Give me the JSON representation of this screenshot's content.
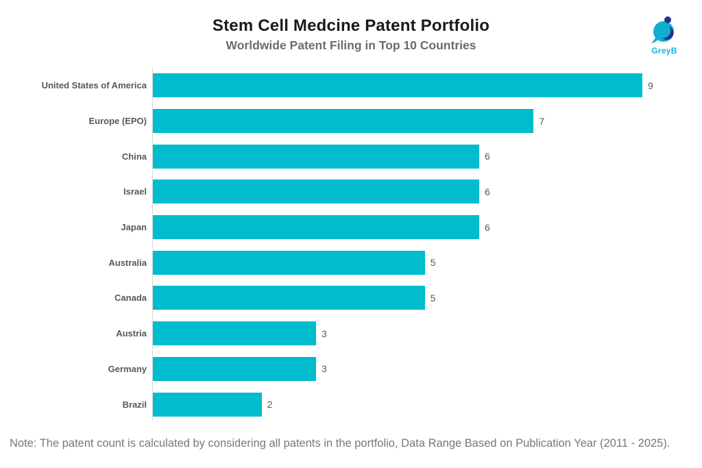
{
  "header": {
    "title": "Stem Cell Medcine Patent Portfolio",
    "subtitle": "Worldwide Patent Filing in Top 10 Countries",
    "logo_text": "GreyB"
  },
  "chart_data": {
    "type": "bar",
    "orientation": "horizontal",
    "title": "Stem Cell Medcine Patent Portfolio",
    "subtitle": "Worldwide Patent Filing in Top 10 Countries",
    "categories": [
      "United States of America",
      "Europe (EPO)",
      "China",
      "Israel",
      "Japan",
      "Australia",
      "Canada",
      "Austria",
      "Germany",
      "Brazil"
    ],
    "values": [
      9,
      7,
      6,
      6,
      6,
      5,
      5,
      3,
      3,
      2
    ],
    "xlabel": "",
    "ylabel": "",
    "xlim": [
      0,
      9
    ],
    "grid": false,
    "legend": false,
    "value_labels": true,
    "bar_color": "#00bccd"
  },
  "footer": {
    "note": "Note: The patent count is calculated by considering all patents in the portfolio, Data Range Based on Publication Year (2011 - 2025)."
  },
  "colors": {
    "bar": "#00bccd",
    "title": "#1a1a1a",
    "subtitle": "#6b6b6b",
    "category_label": "#585858",
    "value_label": "#585858",
    "note": "#77777c",
    "axis_line": "#d6d6d6",
    "logo_teal": "#10afd2",
    "logo_navy": "#1d3590"
  }
}
